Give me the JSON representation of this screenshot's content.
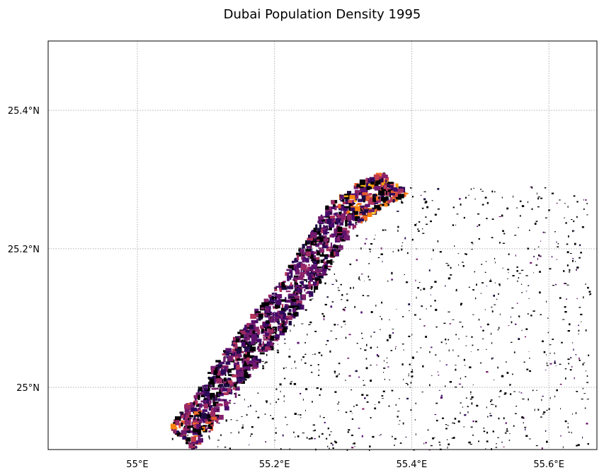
{
  "map": {
    "title": "Dubai Population Density 1995",
    "lon_range": [
      54.87,
      55.67
    ],
    "lat_range": [
      24.91,
      25.5
    ],
    "gridlines": true,
    "grid_style": "dotted",
    "colormap": "inferno",
    "x_ticks": [
      {
        "value": 55.0,
        "label": "55°E"
      },
      {
        "value": 55.2,
        "label": "55.2°E"
      },
      {
        "value": 55.4,
        "label": "55.4°E"
      },
      {
        "value": 55.6,
        "label": "55.6°E"
      }
    ],
    "y_ticks": [
      {
        "value": 25.0,
        "label": "25°N"
      },
      {
        "value": 25.2,
        "label": "25.2°N"
      },
      {
        "value": 25.4,
        "label": "25.4°N"
      }
    ]
  }
}
